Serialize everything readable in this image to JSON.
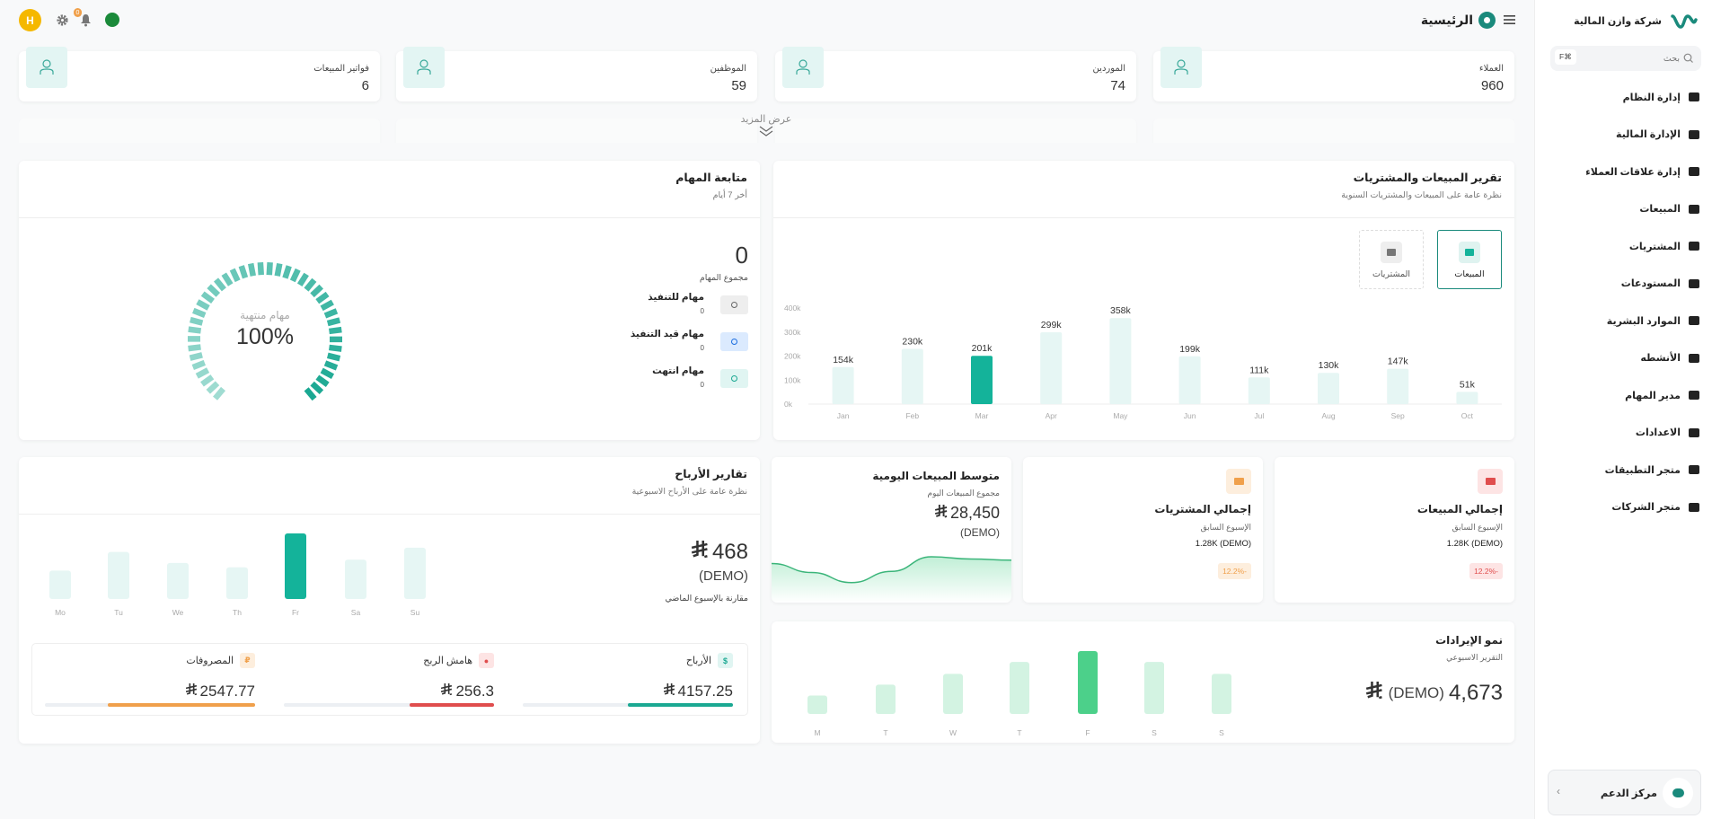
{
  "colors": {
    "accent": "#14b39a",
    "accent_light": "#e6f6f4",
    "revenue": "#4cd08a",
    "revenue_light": "#d3f3e2",
    "danger": "#e04d4d",
    "warning": "#f0a04b",
    "avatar": "#f5b800"
  },
  "topbar": {
    "avatar_letter": "H",
    "notification_count": "0",
    "page_title": "الرئيسية",
    "icons": [
      "menu-icon",
      "home-icon",
      "gear-icon",
      "bell-icon",
      "flag-icon"
    ]
  },
  "stats": [
    {
      "label": "العملاء",
      "value": "960",
      "icon": "user-icon"
    },
    {
      "label": "الموردين",
      "value": "74",
      "icon": "user-icon"
    },
    {
      "label": "الموظفين",
      "value": "59",
      "icon": "user-icon"
    },
    {
      "label": "فواتير المبيعات",
      "value": "6",
      "icon": "shopping-bag-icon"
    }
  ],
  "show_more": "عرض المزيد",
  "sales_report": {
    "title": "تقرير المبيعات والمشتريات",
    "subtitle": "نظرة عامة على المبيعات والمشتريات السنوية",
    "toggles": [
      {
        "label": "المبيعات",
        "icon": "truck-icon",
        "active": true
      },
      {
        "label": "المشتريات",
        "icon": "cart-icon",
        "active": false
      }
    ]
  },
  "tasks": {
    "title": "متابعة المهام",
    "subtitle": "أخر 7 أيام",
    "total": "0",
    "total_label": "مجموع المهام",
    "items": [
      {
        "label": "مهام للتنفيذ",
        "value": "0",
        "icon": "list-icon"
      },
      {
        "label": "مهام قيد التنفيذ",
        "value": "0",
        "icon": "clock-icon"
      },
      {
        "label": "مهام انتهت",
        "value": "0",
        "icon": "clock-icon"
      }
    ],
    "gauge_label": "مهام منتهية",
    "gauge_value": "100%",
    "gauge_percent": 100
  },
  "profits": {
    "title": "تقارير الأرباح",
    "subtitle": "نظرة عامة على الأرباح الاسبوعية",
    "amount": "468",
    "demo": "(DEMO)",
    "compare": "مقارنة بالإسبوع الماضي",
    "summary": [
      {
        "label": "الأرباح",
        "value": "4157.25",
        "icon": "dollar-icon",
        "color": "#1aa892",
        "bg": "#e0f5f2",
        "progress": 50
      },
      {
        "label": "هامش الربح",
        "value": "256.3",
        "icon": "target-icon",
        "color": "#e04d4d",
        "bg": "#fde4e4",
        "progress": 40
      },
      {
        "label": "المصروفات",
        "value": "2547.77",
        "icon": "coin-icon",
        "color": "#f0a04b",
        "bg": "#fdeedd",
        "progress": 70
      }
    ]
  },
  "total_sales": {
    "title": "إجمالي المبيعات",
    "sub": "الإسبوع السابق",
    "value": "1.28K (DEMO)",
    "change": "12.2%-"
  },
  "total_purchases": {
    "title": "إجمالي المشتريات",
    "sub": "الإسبوع السابق",
    "value": "1.28K (DEMO)",
    "change": "12.2%-"
  },
  "daily_avg": {
    "title": "متوسط المبيعات اليومية",
    "sub": "مجموع المبيعات اليوم",
    "value": "28,450",
    "demo": "(DEMO)"
  },
  "revenue": {
    "title": "نمو الإيرادات",
    "sub": "التقرير الاسبوعي",
    "value": "4,673",
    "demo": "(DEMO)"
  },
  "sidebar": {
    "company": "شركة وازن المالية",
    "search_placeholder": "بحث",
    "shortcut": "F⌘",
    "items": [
      {
        "label": "إدارة النظام"
      },
      {
        "label": "الإدارة المالية"
      },
      {
        "label": "إدارة علاقات العملاء"
      },
      {
        "label": "المبيعات"
      },
      {
        "label": "المشتريات"
      },
      {
        "label": "المستودعات"
      },
      {
        "label": "الموارد البشرية"
      },
      {
        "label": "الأنشطه"
      },
      {
        "label": "مدير المهام"
      },
      {
        "label": "الاعدادات"
      },
      {
        "label": "متجر التطبيقات"
      },
      {
        "label": "متجر الشركات"
      }
    ],
    "support": "مركز الدعم"
  },
  "chart_data": [
    {
      "type": "bar",
      "title": "تقرير المبيعات والمشتريات",
      "categories": [
        "Jan",
        "Feb",
        "Mar",
        "Apr",
        "May",
        "Jun",
        "Jul",
        "Aug",
        "Sep",
        "Oct"
      ],
      "values": [
        154,
        230,
        201,
        299,
        358,
        199,
        111,
        130,
        147,
        51
      ],
      "labels": [
        "154k",
        "230k",
        "201k",
        "299k",
        "358k",
        "199k",
        "111k",
        "130k",
        "147k",
        "51k"
      ],
      "yticks": [
        "0k",
        "100k",
        "200k",
        "300k",
        "400k"
      ],
      "ylim": [
        0,
        400
      ],
      "highlight": "Mar"
    },
    {
      "type": "bar",
      "title": "تقارير الأرباح",
      "categories": [
        "Mo",
        "Tu",
        "We",
        "Th",
        "Fr",
        "Sa",
        "Su"
      ],
      "values": [
        26,
        43,
        33,
        29,
        60,
        36,
        47
      ],
      "highlight": "Fr"
    },
    {
      "type": "bar",
      "title": "نمو الإيرادات",
      "categories": [
        "M",
        "T",
        "W",
        "T",
        "F",
        "S",
        "S"
      ],
      "values": [
        17,
        27,
        37,
        48,
        58,
        48,
        37
      ],
      "highlight": "F"
    },
    {
      "type": "area",
      "title": "متوسط المبيعات اليومية",
      "values": [
        30,
        22,
        13,
        23,
        36,
        34,
        33
      ]
    }
  ]
}
